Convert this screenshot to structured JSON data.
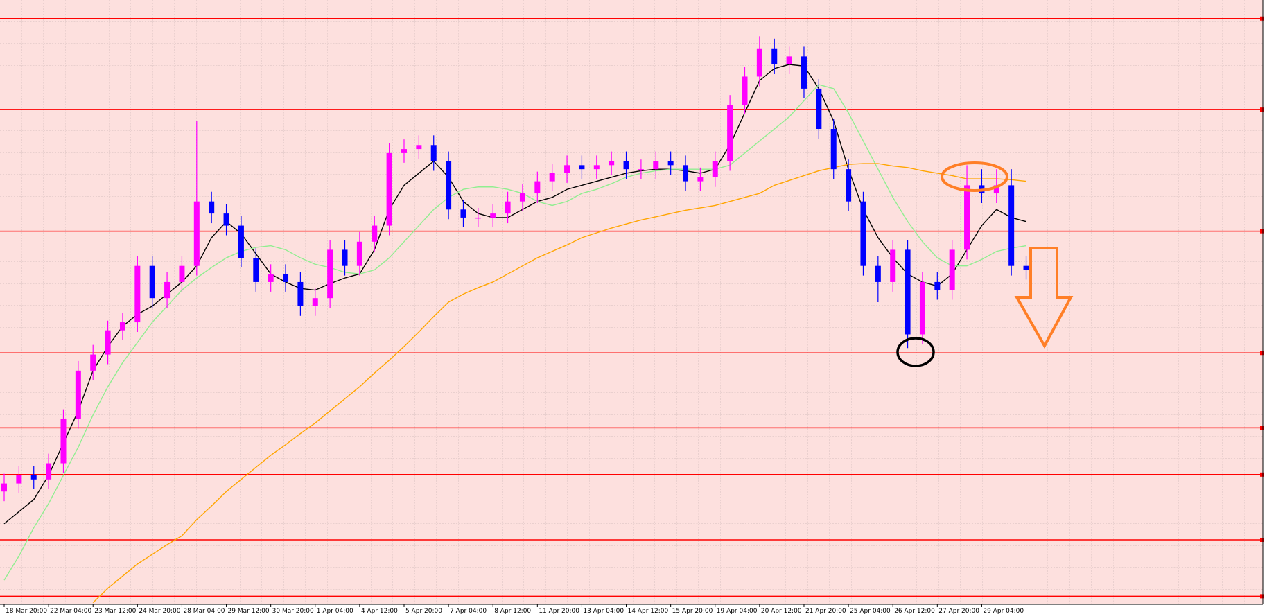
{
  "chart_data": {
    "type": "candlestick",
    "categories": [
      "18 Mar 20:00",
      null,
      null,
      "22 Mar 04:00",
      null,
      null,
      "23 Mar 12:00",
      null,
      null,
      "24 Mar 20:00",
      null,
      null,
      "28 Mar 04:00",
      null,
      null,
      "29 Mar 12:00",
      null,
      null,
      "30 Mar 20:00",
      null,
      null,
      "1 Apr 04:00",
      null,
      null,
      "4 Apr 12:00",
      null,
      null,
      "5 Apr 20:00",
      null,
      null,
      "7 Apr 04:00",
      null,
      null,
      "8 Apr 12:00",
      null,
      null,
      "11 Apr 20:00",
      null,
      null,
      "13 Apr 04:00",
      null,
      null,
      "14 Apr 12:00",
      null,
      null,
      "15 Apr 20:00",
      null,
      null,
      "19 Apr 04:00",
      null,
      null,
      "20 Apr 12:00",
      null,
      null,
      "21 Apr 20:00",
      null,
      null,
      "25 Apr 04:00",
      null,
      null,
      "26 Apr 12:00",
      null,
      null,
      "27 Apr 20:00",
      null,
      null,
      "29 Apr 04:00",
      null,
      null,
      null
    ],
    "open": [
      140,
      150,
      160,
      155,
      175,
      230,
      290,
      310,
      340,
      350,
      420,
      380,
      400,
      420,
      500,
      485,
      470,
      430,
      400,
      410,
      400,
      370,
      380,
      440,
      420,
      450,
      470,
      560,
      565,
      570,
      550,
      490,
      480,
      480,
      485,
      500,
      510,
      525,
      535,
      545,
      540,
      545,
      550,
      540,
      540,
      550,
      545,
      525,
      530,
      550,
      620,
      655,
      690,
      670,
      680,
      640,
      590,
      540,
      500,
      420,
      400,
      440,
      335,
      400,
      390,
      440,
      520,
      510,
      520,
      420
    ],
    "high": [
      162,
      172,
      172,
      187,
      242,
      302,
      322,
      352,
      362,
      432,
      432,
      412,
      432,
      600,
      512,
      497,
      482,
      442,
      422,
      422,
      412,
      392,
      452,
      452,
      462,
      482,
      572,
      577,
      582,
      582,
      562,
      502,
      492,
      497,
      512,
      522,
      537,
      547,
      557,
      557,
      557,
      562,
      562,
      552,
      562,
      562,
      557,
      542,
      562,
      632,
      667,
      705,
      702,
      692,
      692,
      652,
      602,
      552,
      512,
      432,
      452,
      452,
      412,
      412,
      452,
      545,
      540,
      540,
      540,
      432
    ],
    "low": [
      128,
      138,
      143,
      143,
      163,
      218,
      278,
      298,
      328,
      338,
      368,
      368,
      388,
      408,
      473,
      458,
      418,
      388,
      388,
      388,
      358,
      358,
      368,
      408,
      408,
      438,
      458,
      548,
      553,
      538,
      478,
      468,
      468,
      468,
      473,
      488,
      498,
      513,
      523,
      528,
      528,
      533,
      528,
      528,
      528,
      533,
      513,
      513,
      518,
      538,
      608,
      643,
      658,
      658,
      628,
      578,
      528,
      488,
      408,
      375,
      388,
      318,
      323,
      378,
      378,
      428,
      498,
      498,
      408,
      403
    ],
    "close": [
      150,
      160,
      155,
      175,
      230,
      290,
      310,
      340,
      350,
      420,
      380,
      400,
      420,
      500,
      485,
      470,
      430,
      400,
      410,
      400,
      370,
      380,
      440,
      420,
      450,
      470,
      560,
      565,
      570,
      550,
      490,
      480,
      480,
      485,
      500,
      510,
      525,
      535,
      545,
      540,
      545,
      550,
      540,
      540,
      550,
      545,
      525,
      530,
      550,
      620,
      655,
      690,
      670,
      680,
      640,
      590,
      540,
      500,
      420,
      400,
      440,
      335,
      400,
      390,
      440,
      520,
      510,
      520,
      420,
      415
    ],
    "up_color": "#ff00ff",
    "down_color": "#0000ff",
    "series": [
      {
        "color": "#000000",
        "values": [
          100,
          115,
          130,
          160,
          200,
          240,
          290,
          320,
          345,
          360,
          370,
          385,
          400,
          420,
          455,
          475,
          460,
          435,
          410,
          400,
          392,
          390,
          398,
          405,
          410,
          440,
          490,
          520,
          535,
          550,
          530,
          500,
          485,
          480,
          480,
          490,
          500,
          505,
          515,
          520,
          525,
          530,
          535,
          538,
          540,
          540,
          538,
          535,
          540,
          570,
          610,
          650,
          665,
          670,
          668,
          640,
          600,
          540,
          490,
          455,
          430,
          410,
          400,
          395,
          410,
          440,
          470,
          490,
          480,
          475
        ]
      },
      {
        "color": "#90ee90",
        "values": [
          30,
          60,
          95,
          125,
          160,
          195,
          235,
          270,
          300,
          325,
          350,
          370,
          390,
          405,
          418,
          430,
          438,
          443,
          445,
          440,
          430,
          422,
          418,
          412,
          410,
          415,
          430,
          450,
          470,
          490,
          505,
          515,
          518,
          518,
          515,
          510,
          500,
          495,
          500,
          510,
          515,
          522,
          530,
          535,
          538,
          540,
          540,
          540,
          540,
          545,
          560,
          575,
          590,
          605,
          625,
          645,
          640,
          610,
          575,
          540,
          505,
          475,
          450,
          430,
          420,
          420,
          428,
          438,
          442,
          445
        ]
      },
      {
        "color": "#ffa500",
        "values": [
          null,
          null,
          null,
          null,
          null,
          null,
          2,
          20,
          35,
          50,
          62,
          74,
          85,
          105,
          122,
          140,
          155,
          170,
          185,
          198,
          212,
          225,
          240,
          255,
          270,
          287,
          303,
          320,
          338,
          357,
          375,
          385,
          393,
          400,
          410,
          420,
          430,
          438,
          446,
          455,
          461,
          467,
          472,
          477,
          481,
          485,
          489,
          492,
          495,
          500,
          505,
          510,
          520,
          526,
          532,
          538,
          542,
          546,
          547,
          547,
          544,
          542,
          538,
          535,
          532,
          528,
          528,
          528,
          527,
          525
        ]
      }
    ],
    "levels": [
      727,
      614,
      463,
      312,
      219,
      161,
      80,
      10
    ],
    "level_color": "#ff0000",
    "ylim": [
      0,
      750
    ],
    "background": "#fde0de"
  }
}
